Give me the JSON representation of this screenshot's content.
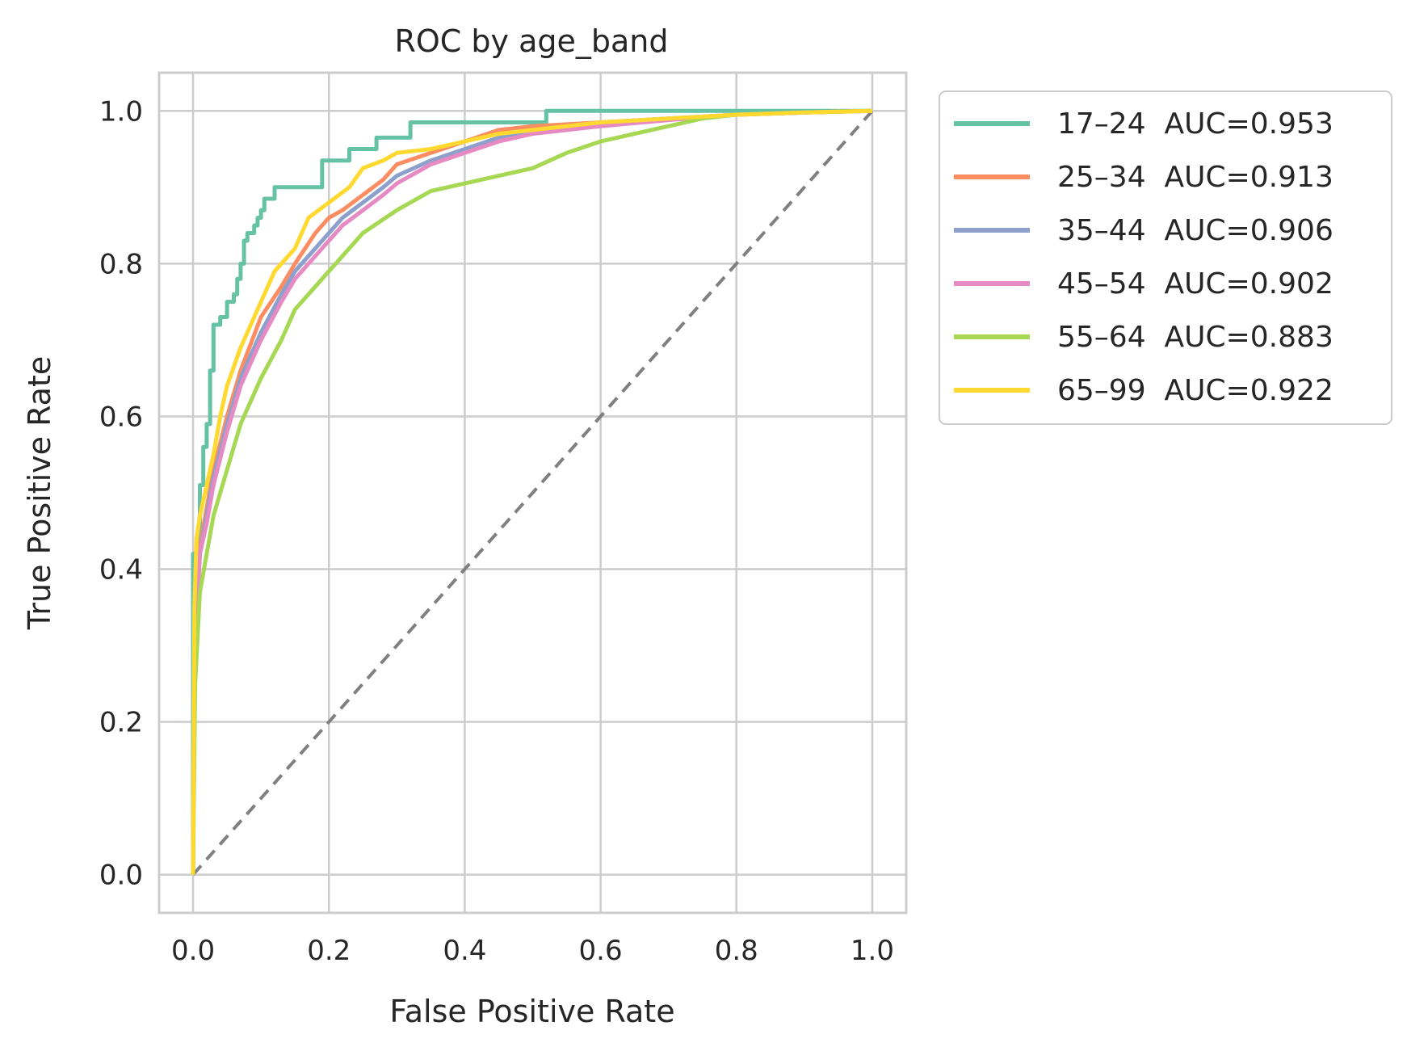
{
  "chart_data": {
    "type": "line",
    "title": "ROC by age_band",
    "xlabel": "False Positive Rate",
    "ylabel": "True Positive Rate",
    "xlim": [
      -0.05,
      1.05
    ],
    "ylim": [
      -0.05,
      1.05
    ],
    "xticks": [
      "0.0",
      "0.2",
      "0.4",
      "0.6",
      "0.8",
      "1.0"
    ],
    "yticks": [
      "0.0",
      "0.2",
      "0.4",
      "0.6",
      "0.8",
      "1.0"
    ],
    "grid": true,
    "legend_position": "outside upper right",
    "reference_line": {
      "style": "dashed",
      "color": "#808080",
      "x": [
        0,
        1
      ],
      "y": [
        0,
        1
      ]
    },
    "series": [
      {
        "name": "17–24  AUC=0.953",
        "color": "#66c2a5",
        "step": true,
        "x": [
          0,
          0,
          0.01,
          0.01,
          0.015,
          0.015,
          0.02,
          0.02,
          0.025,
          0.025,
          0.03,
          0.03,
          0.04,
          0.04,
          0.05,
          0.05,
          0.06,
          0.06,
          0.065,
          0.065,
          0.07,
          0.07,
          0.075,
          0.075,
          0.08,
          0.08,
          0.09,
          0.09,
          0.095,
          0.095,
          0.1,
          0.1,
          0.105,
          0.105,
          0.12,
          0.12,
          0.19,
          0.19,
          0.23,
          0.23,
          0.27,
          0.27,
          0.32,
          0.32,
          0.52,
          0.52,
          1.0
        ],
        "y": [
          0,
          0.42,
          0.42,
          0.51,
          0.51,
          0.56,
          0.56,
          0.59,
          0.59,
          0.66,
          0.66,
          0.72,
          0.72,
          0.73,
          0.73,
          0.75,
          0.75,
          0.76,
          0.76,
          0.78,
          0.78,
          0.8,
          0.8,
          0.83,
          0.83,
          0.84,
          0.84,
          0.85,
          0.85,
          0.86,
          0.86,
          0.87,
          0.87,
          0.885,
          0.885,
          0.9,
          0.9,
          0.935,
          0.935,
          0.95,
          0.95,
          0.965,
          0.965,
          0.985,
          0.985,
          1.0,
          1.0
        ]
      },
      {
        "name": "25–34  AUC=0.913",
        "color": "#fc8d62",
        "x": [
          0,
          0.002,
          0.01,
          0.02,
          0.03,
          0.05,
          0.07,
          0.1,
          0.13,
          0.15,
          0.18,
          0.2,
          0.22,
          0.25,
          0.28,
          0.3,
          0.35,
          0.4,
          0.45,
          0.5,
          0.6,
          0.7,
          0.8,
          0.9,
          1.0
        ],
        "y": [
          0,
          0.3,
          0.43,
          0.48,
          0.53,
          0.6,
          0.66,
          0.73,
          0.77,
          0.8,
          0.84,
          0.86,
          0.87,
          0.89,
          0.91,
          0.93,
          0.945,
          0.96,
          0.975,
          0.98,
          0.985,
          0.99,
          0.995,
          0.998,
          1.0
        ]
      },
      {
        "name": "35–44  AUC=0.906",
        "color": "#8da0cb",
        "x": [
          0,
          0.002,
          0.01,
          0.02,
          0.03,
          0.05,
          0.07,
          0.1,
          0.13,
          0.15,
          0.18,
          0.2,
          0.22,
          0.25,
          0.28,
          0.3,
          0.35,
          0.4,
          0.45,
          0.5,
          0.6,
          0.7,
          0.8,
          0.9,
          1.0
        ],
        "y": [
          0,
          0.3,
          0.42,
          0.47,
          0.52,
          0.59,
          0.65,
          0.71,
          0.76,
          0.79,
          0.82,
          0.84,
          0.86,
          0.88,
          0.9,
          0.915,
          0.935,
          0.95,
          0.965,
          0.975,
          0.985,
          0.99,
          0.995,
          0.998,
          1.0
        ]
      },
      {
        "name": "45–54  AUC=0.902",
        "color": "#e78ac3",
        "x": [
          0,
          0.002,
          0.01,
          0.02,
          0.03,
          0.05,
          0.07,
          0.1,
          0.13,
          0.15,
          0.18,
          0.2,
          0.22,
          0.25,
          0.28,
          0.3,
          0.35,
          0.4,
          0.45,
          0.5,
          0.6,
          0.7,
          0.8,
          0.9,
          1.0
        ],
        "y": [
          0,
          0.28,
          0.42,
          0.46,
          0.51,
          0.58,
          0.64,
          0.7,
          0.75,
          0.78,
          0.81,
          0.83,
          0.85,
          0.87,
          0.89,
          0.905,
          0.93,
          0.945,
          0.96,
          0.97,
          0.98,
          0.988,
          0.995,
          0.998,
          1.0
        ]
      },
      {
        "name": "55–64  AUC=0.883",
        "color": "#a6d854",
        "x": [
          0,
          0.003,
          0.01,
          0.02,
          0.03,
          0.05,
          0.07,
          0.1,
          0.13,
          0.15,
          0.18,
          0.2,
          0.25,
          0.3,
          0.35,
          0.4,
          0.45,
          0.5,
          0.55,
          0.6,
          0.65,
          0.7,
          0.75,
          0.8,
          0.9,
          1.0
        ],
        "y": [
          0,
          0.25,
          0.37,
          0.42,
          0.47,
          0.53,
          0.59,
          0.65,
          0.7,
          0.74,
          0.77,
          0.79,
          0.84,
          0.87,
          0.895,
          0.905,
          0.915,
          0.925,
          0.945,
          0.96,
          0.97,
          0.98,
          0.99,
          0.995,
          0.998,
          1.0
        ]
      },
      {
        "name": "65–99  AUC=0.922",
        "color": "#ffd92f",
        "x": [
          0,
          0.002,
          0.005,
          0.01,
          0.02,
          0.03,
          0.04,
          0.05,
          0.07,
          0.1,
          0.12,
          0.15,
          0.17,
          0.2,
          0.23,
          0.25,
          0.28,
          0.3,
          0.35,
          0.4,
          0.45,
          0.5,
          0.6,
          0.7,
          0.8,
          0.9,
          1.0
        ],
        "y": [
          0,
          0.35,
          0.44,
          0.47,
          0.51,
          0.55,
          0.6,
          0.64,
          0.69,
          0.75,
          0.79,
          0.82,
          0.86,
          0.88,
          0.9,
          0.925,
          0.935,
          0.945,
          0.95,
          0.96,
          0.97,
          0.975,
          0.985,
          0.99,
          0.995,
          0.998,
          1.0
        ]
      }
    ]
  }
}
